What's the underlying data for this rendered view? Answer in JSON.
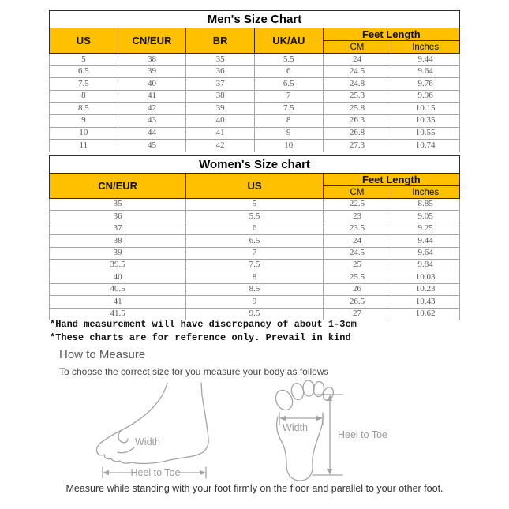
{
  "theme": {
    "header_bg": "#FFC000"
  },
  "mens_table": {
    "title": "Men's Size Chart",
    "headers": {
      "us": "US",
      "cn_eur": "CN/EUR",
      "br": "BR",
      "uk_au": "UK/AU",
      "feet_length": "Feet Length",
      "cm": "CM",
      "inches": "Inches"
    },
    "rows": [
      [
        "5",
        "38",
        "35",
        "5.5",
        "24",
        "9.44"
      ],
      [
        "6.5",
        "39",
        "36",
        "6",
        "24.5",
        "9.64"
      ],
      [
        "7.5",
        "40",
        "37",
        "6.5",
        "24.8",
        "9.76"
      ],
      [
        "8",
        "41",
        "38",
        "7",
        "25.3",
        "9.96"
      ],
      [
        "8.5",
        "42",
        "39",
        "7.5",
        "25.8",
        "10.15"
      ],
      [
        "9",
        "43",
        "40",
        "8",
        "26.3",
        "10.35"
      ],
      [
        "10",
        "44",
        "41",
        "9",
        "26.8",
        "10.55"
      ],
      [
        "11",
        "45",
        "42",
        "10",
        "27.3",
        "10.74"
      ]
    ]
  },
  "womens_table": {
    "title": "Women's Size chart",
    "headers": {
      "cn_eur": "CN/EUR",
      "us": "US",
      "feet_length": "Feet Length",
      "cm": "CM",
      "inches": "Inches"
    },
    "rows": [
      [
        "35",
        "5",
        "22.5",
        "8.85"
      ],
      [
        "36",
        "5.5",
        "23",
        "9.05"
      ],
      [
        "37",
        "6",
        "23.5",
        "9.25"
      ],
      [
        "38",
        "6.5",
        "24",
        "9.44"
      ],
      [
        "39",
        "7",
        "24.5",
        "9.64"
      ],
      [
        "39.5",
        "7.5",
        "25",
        "9.84"
      ],
      [
        "40",
        "8",
        "25.5",
        "10.03"
      ],
      [
        "40.5",
        "8.5",
        "26",
        "10.23"
      ],
      [
        "41",
        "9",
        "26.5",
        "10.43"
      ],
      [
        "41.5",
        "9.5",
        "27",
        "10.62"
      ]
    ]
  },
  "notes": [
    "*Hand measurement will have discrepancy of about 1-3cm",
    "*These charts are for reference only. Prevail in kind"
  ],
  "how_to_measure": {
    "title": "How to Measure",
    "subtitle": "To choose the correct size for you measure your body as follows",
    "side_view": {
      "width_label": "Width",
      "heel_to_toe_label": "Heel to Toe"
    },
    "sole_view": {
      "width_label": "Width",
      "heel_to_toe_label": "Heel to Toe"
    },
    "caption": "Measure while standing with your foot firmly on the floor and parallel to your other foot."
  }
}
